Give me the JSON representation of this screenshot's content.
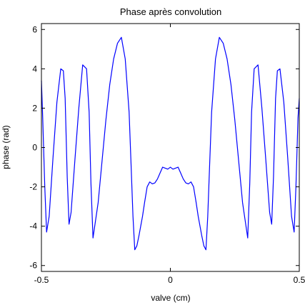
{
  "chart_data": {
    "type": "line",
    "title": "Phase après convolution",
    "xlabel": "valve (cm)",
    "ylabel": "phase (rad)",
    "xlim": [
      -0.5,
      0.5
    ],
    "ylim": [
      -6.3,
      6.3
    ],
    "xticks": [
      -0.5,
      0,
      0.5
    ],
    "xtick_labels": [
      "-0.5",
      "0",
      "0.5"
    ],
    "yticks": [
      -6,
      -4,
      -2,
      0,
      2,
      4,
      6
    ],
    "ytick_labels": [
      "-6",
      "-4",
      "-2",
      "0",
      "2",
      "4",
      "6"
    ],
    "grid": false,
    "line_color": "#0000ff",
    "series": [
      {
        "x": [
          -0.5,
          -0.495,
          -0.487,
          -0.48,
          -0.47,
          -0.455,
          -0.44,
          -0.425,
          -0.415,
          -0.408,
          -0.4,
          -0.393,
          -0.385,
          -0.37,
          -0.355,
          -0.34,
          -0.325,
          -0.315,
          -0.308,
          -0.3,
          -0.29,
          -0.28,
          -0.265,
          -0.25,
          -0.235,
          -0.22,
          -0.205,
          -0.19,
          -0.175,
          -0.16,
          -0.152,
          -0.145,
          -0.138,
          -0.13,
          -0.122,
          -0.115,
          -0.108,
          -0.1,
          -0.09,
          -0.08,
          -0.07,
          -0.06,
          -0.05,
          -0.04,
          -0.03,
          -0.02,
          -0.01,
          0,
          0.01,
          0.02,
          0.03,
          0.04,
          0.05,
          0.06,
          0.07,
          0.08,
          0.09,
          0.1,
          0.108,
          0.115,
          0.122,
          0.13,
          0.138,
          0.145,
          0.152,
          0.16,
          0.175,
          0.19,
          0.205,
          0.22,
          0.235,
          0.25,
          0.265,
          0.28,
          0.29,
          0.3,
          0.308,
          0.315,
          0.325,
          0.34,
          0.355,
          0.37,
          0.385,
          0.393,
          0.4,
          0.408,
          0.415,
          0.425,
          0.44,
          0.455,
          0.47,
          0.48,
          0.487,
          0.495,
          0.5
        ],
        "y": [
          3.4,
          1.5,
          -2.0,
          -4.3,
          -3.5,
          -0.5,
          2.3,
          4.0,
          3.9,
          2.5,
          -1.5,
          -3.9,
          -3.3,
          -0.6,
          2.0,
          4.2,
          4.0,
          1.8,
          -1.8,
          -4.6,
          -3.7,
          -2.8,
          -0.7,
          1.4,
          3.2,
          4.5,
          5.3,
          5.6,
          4.5,
          1.8,
          -1.0,
          -3.5,
          -5.2,
          -5.0,
          -4.5,
          -4.0,
          -3.5,
          -2.8,
          -2.0,
          -1.75,
          -1.85,
          -1.8,
          -1.6,
          -1.3,
          -1.0,
          -1.05,
          -1.1,
          -1.0,
          -1.1,
          -1.05,
          -1.0,
          -1.3,
          -1.6,
          -1.8,
          -1.85,
          -1.75,
          -2.0,
          -2.8,
          -3.5,
          -4.0,
          -4.5,
          -5.0,
          -5.2,
          -3.5,
          -1.0,
          1.8,
          4.5,
          5.6,
          5.3,
          4.5,
          3.2,
          1.4,
          -0.7,
          -2.8,
          -3.7,
          -4.6,
          -1.8,
          1.8,
          4.0,
          4.2,
          2.0,
          -0.6,
          -3.3,
          -3.9,
          -1.5,
          2.5,
          3.9,
          4.0,
          2.3,
          -0.5,
          -3.5,
          -4.3,
          -2.0,
          1.5,
          2.5
        ]
      }
    ]
  }
}
